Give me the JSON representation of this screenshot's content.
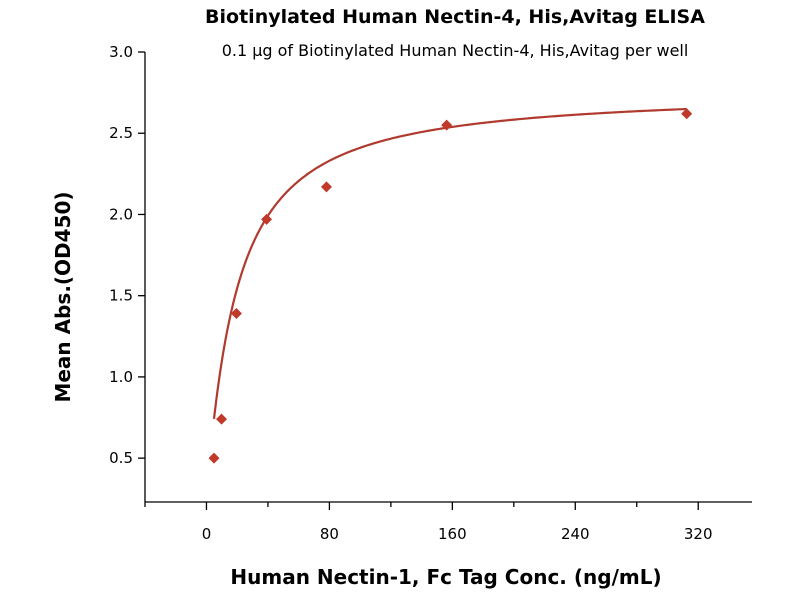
{
  "chart_data": {
    "type": "scatter",
    "title": "Biotinylated Human Nectin-4, His,Avitag ELISA",
    "subtitle": "0.1 µg of Biotinylated Human Nectin-4, His,Avitag per well",
    "xlabel": "Human Nectin-1, Fc Tag Conc. (ng/mL)",
    "ylabel": "Mean Abs.(OD450)",
    "xlim": [
      -40,
      355
    ],
    "ylim": [
      0.23,
      3.0
    ],
    "x_ticks": [
      0,
      80,
      160,
      240,
      320
    ],
    "x_tick_labels": [
      "0",
      "80",
      "160",
      "240",
      "320"
    ],
    "x_minor_ticks": [
      -40,
      40,
      120,
      200,
      280
    ],
    "y_ticks": [
      0.5,
      1.0,
      1.5,
      2.0,
      2.5,
      3.0
    ],
    "y_tick_labels": [
      "0.5",
      "1.0",
      "1.5",
      "2.0",
      "2.5",
      "3.0"
    ],
    "grid": false,
    "series": [
      {
        "marker": "diamond",
        "color": "#c0392b",
        "x": [
          4.9,
          9.8,
          19.5,
          39.1,
          78.1,
          156.3,
          312.5
        ],
        "y": [
          0.5,
          0.74,
          1.39,
          1.97,
          2.17,
          2.55,
          2.62
        ]
      }
    ],
    "fit": {
      "type": "hyperbolic",
      "color": "#b03a2e",
      "bottom": 0.3,
      "top": 2.76,
      "ec50": 19.5,
      "hill": 1.1,
      "x_start": 4.9,
      "x_end": 312.5
    }
  }
}
